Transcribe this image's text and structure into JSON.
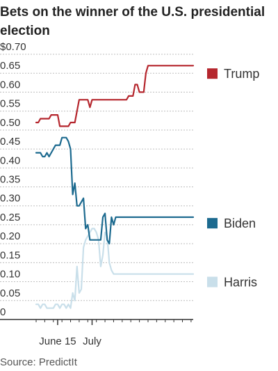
{
  "chart_data": {
    "type": "line",
    "title": "Bets on the winner of the U.S. presidential election",
    "source": "Source: PredictIt",
    "xlabel": "",
    "ylabel": "",
    "ylim": [
      0,
      0.7
    ],
    "y_ticks": [
      {
        "value": 0.7,
        "label": "$0.70"
      },
      {
        "value": 0.65,
        "label": "0.65"
      },
      {
        "value": 0.6,
        "label": "0.60"
      },
      {
        "value": 0.55,
        "label": "0.55"
      },
      {
        "value": 0.5,
        "label": "0.50"
      },
      {
        "value": 0.45,
        "label": "0.45"
      },
      {
        "value": 0.4,
        "label": "0.40"
      },
      {
        "value": 0.35,
        "label": "0.35"
      },
      {
        "value": 0.3,
        "label": "0.30"
      },
      {
        "value": 0.25,
        "label": "0.25"
      },
      {
        "value": 0.2,
        "label": "0.20"
      },
      {
        "value": 0.15,
        "label": "0.15"
      },
      {
        "value": 0.1,
        "label": "0.10"
      },
      {
        "value": 0.05,
        "label": "0.05"
      },
      {
        "value": 0,
        "label": "0"
      }
    ],
    "x_ticks": [
      {
        "date": "2024-06-15",
        "label": "June 15"
      },
      {
        "date": "2024-07-01",
        "label": "July"
      }
    ],
    "x": [
      "2024-06-05",
      "2024-06-06",
      "2024-06-07",
      "2024-06-08",
      "2024-06-09",
      "2024-06-10",
      "2024-06-11",
      "2024-06-12",
      "2024-06-13",
      "2024-06-14",
      "2024-06-15",
      "2024-06-16",
      "2024-06-17",
      "2024-06-18",
      "2024-06-19",
      "2024-06-20",
      "2024-06-21",
      "2024-06-22",
      "2024-06-23",
      "2024-06-24",
      "2024-06-25",
      "2024-06-26",
      "2024-06-27",
      "2024-06-28",
      "2024-06-29",
      "2024-06-30",
      "2024-07-01",
      "2024-07-02",
      "2024-07-03",
      "2024-07-04",
      "2024-07-05",
      "2024-07-06",
      "2024-07-07",
      "2024-07-08",
      "2024-07-09",
      "2024-07-10",
      "2024-07-11",
      "2024-07-12",
      "2024-07-13",
      "2024-07-14",
      "2024-07-15",
      "2024-07-16",
      "2024-07-17",
      "2024-07-18",
      "2024-07-19",
      "2024-07-20",
      "2024-07-21",
      "2024-07-22",
      "2024-07-23",
      "2024-07-24",
      "2024-07-25",
      "2024-07-26",
      "2024-07-27",
      "2024-07-28",
      "2024-07-29",
      "2024-07-30",
      "2024-07-31",
      "2024-08-01",
      "2024-08-02",
      "2024-08-03",
      "2024-08-04",
      "2024-08-05",
      "2024-08-06",
      "2024-08-07",
      "2024-08-08",
      "2024-08-09",
      "2024-08-10",
      "2024-08-11",
      "2024-08-12",
      "2024-08-13",
      "2024-08-14",
      "2024-08-15",
      "2024-08-16",
      "2024-08-17"
    ],
    "series": [
      {
        "name": "Trump",
        "color": "#b5262d",
        "values": [
          0.52,
          0.52,
          0.53,
          0.53,
          0.53,
          0.53,
          0.53,
          0.54,
          0.54,
          0.54,
          0.54,
          0.51,
          0.51,
          0.51,
          0.51,
          0.51,
          0.52,
          0.52,
          0.52,
          0.55,
          0.58,
          0.58,
          0.58,
          0.58,
          0.58,
          0.56,
          0.58,
          0.58,
          0.58,
          0.58,
          0.58,
          0.58,
          0.58,
          0.58,
          0.58,
          0.58,
          0.58,
          0.58,
          0.58,
          0.58,
          0.58,
          0.58,
          0.58,
          0.59,
          0.59,
          0.59,
          0.62,
          0.62,
          0.6,
          0.6,
          0.6,
          0.65,
          0.67,
          0.67,
          0.67,
          0.67,
          0.67,
          0.67,
          0.67,
          0.67,
          0.67,
          0.67,
          0.67,
          0.67,
          0.67,
          0.67,
          0.67,
          0.67,
          0.67,
          0.67,
          0.67,
          0.67,
          0.67,
          0.67
        ]
      },
      {
        "name": "Biden",
        "color": "#1c6a8f",
        "values": [
          0.44,
          0.44,
          0.44,
          0.43,
          0.43,
          0.44,
          0.43,
          0.44,
          0.45,
          0.46,
          0.46,
          0.46,
          0.48,
          0.48,
          0.48,
          0.47,
          0.45,
          0.33,
          0.36,
          0.3,
          0.3,
          0.31,
          0.32,
          0.24,
          0.25,
          0.21,
          0.21,
          0.21,
          0.21,
          0.21,
          0.21,
          0.27,
          0.28,
          0.21,
          0.2,
          0.27,
          0.25,
          0.27,
          0.27,
          0.27,
          0.27,
          0.27,
          0.27,
          0.27,
          0.27,
          0.27,
          0.27,
          0.27,
          0.27,
          0.27,
          0.27,
          0.27,
          0.27,
          0.27,
          0.27,
          0.27,
          0.27,
          0.27,
          0.27,
          0.27,
          0.27,
          0.27,
          0.27,
          0.27,
          0.27,
          0.27,
          0.27,
          0.27,
          0.27,
          0.27,
          0.27,
          0.27,
          0.27,
          0.27
        ]
      },
      {
        "name": "Harris",
        "color": "#c9dfea",
        "values": [
          0.04,
          0.04,
          0.03,
          0.04,
          0.04,
          0.03,
          0.03,
          0.03,
          0.03,
          0.04,
          0.04,
          0.03,
          0.04,
          0.04,
          0.03,
          0.04,
          0.03,
          0.07,
          0.05,
          0.14,
          0.07,
          0.08,
          0.19,
          0.21,
          0.22,
          0.23,
          0.24,
          0.24,
          0.23,
          0.21,
          0.14,
          0.17,
          0.23,
          0.22,
          0.15,
          0.13,
          0.12,
          0.12,
          0.12,
          0.12,
          0.12,
          0.12,
          0.12,
          0.12,
          0.12,
          0.12,
          0.12,
          0.12,
          0.12,
          0.12,
          0.12,
          0.12,
          0.12,
          0.12,
          0.12,
          0.12,
          0.12,
          0.12,
          0.12,
          0.12,
          0.12,
          0.12,
          0.12,
          0.12,
          0.12,
          0.12,
          0.12,
          0.12,
          0.12,
          0.12,
          0.12,
          0.12,
          0.12,
          0.12
        ]
      }
    ],
    "grid": true,
    "legend_placement": "right"
  }
}
